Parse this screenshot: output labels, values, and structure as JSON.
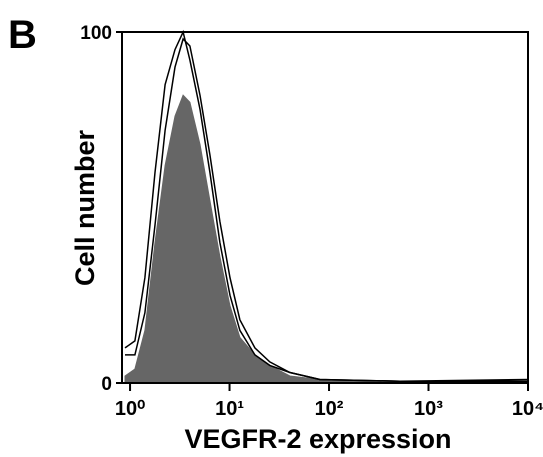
{
  "chart_data": {
    "type": "histogram-overlay",
    "panel_label": "B",
    "ylabel": "Cell number",
    "xlabel": "VEGFR-2 expression",
    "log_x": true,
    "xlim": [
      0.83,
      10000
    ],
    "xticks": [
      {
        "value": 1,
        "label": "10⁰"
      },
      {
        "value": 10,
        "label": "10¹"
      },
      {
        "value": 100,
        "label": "10²"
      },
      {
        "value": 1000,
        "label": "10³"
      },
      {
        "value": 10000,
        "label": "10⁴"
      }
    ],
    "ylim": [
      0,
      100
    ],
    "yticks": [
      0,
      100
    ],
    "x": [
      0.89,
      1.12,
      1.41,
      1.78,
      2.25,
      2.83,
      3.41,
      4.0,
      5.05,
      6.35,
      8.0,
      10.1,
      12.7,
      18.0,
      25.4,
      40.4,
      81,
      517,
      10000
    ],
    "series": [
      {
        "color": "#666666",
        "filled": true,
        "values": [
          2,
          4,
          15,
          40,
          62,
          76,
          82,
          80,
          68,
          52,
          36,
          22,
          13,
          8,
          5,
          2,
          1,
          0.3,
          0
        ]
      },
      {
        "color": "#000000",
        "filled": false,
        "values": [
          10,
          12,
          30,
          60,
          85,
          95,
          100,
          92,
          78,
          60,
          40,
          25,
          15,
          8,
          5,
          3,
          1,
          0.5,
          1
        ]
      },
      {
        "color": "#000000",
        "filled": false,
        "values": [
          8,
          8,
          20,
          45,
          72,
          90,
          98,
          96,
          82,
          65,
          46,
          30,
          18,
          10,
          6,
          3,
          1,
          0.5,
          0.5
        ]
      }
    ]
  }
}
